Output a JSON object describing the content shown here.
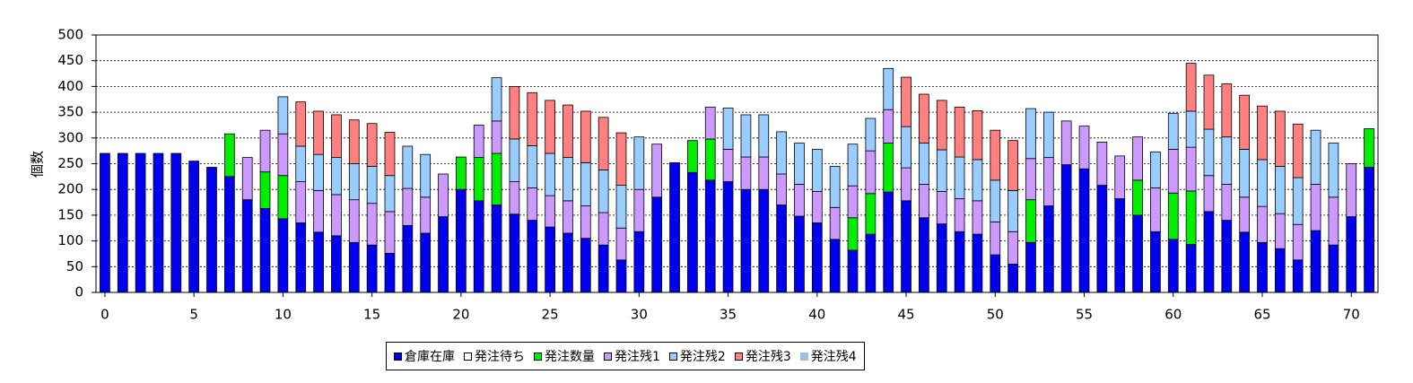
{
  "chart_data": {
    "type": "stacked_bar",
    "ylabel": "個数",
    "x": [
      0,
      1,
      2,
      3,
      4,
      5,
      6,
      7,
      8,
      9,
      10,
      11,
      12,
      13,
      14,
      15,
      16,
      17,
      18,
      19,
      20,
      21,
      22,
      23,
      24,
      25,
      26,
      27,
      28,
      29,
      30,
      31,
      32,
      33,
      34,
      35,
      36,
      37,
      38,
      39,
      40,
      41,
      42,
      43,
      44,
      45,
      46,
      47,
      48,
      49,
      50,
      51,
      52,
      53,
      54,
      55,
      56,
      57,
      58,
      59,
      60,
      61,
      62,
      63,
      64,
      65,
      66,
      67,
      68,
      69,
      70,
      71
    ],
    "xlim": [
      -0.5,
      71.5
    ],
    "xticks": [
      0,
      5,
      10,
      15,
      20,
      25,
      30,
      35,
      40,
      45,
      50,
      55,
      60,
      65,
      70
    ],
    "ylim": [
      0,
      500
    ],
    "yticks": [
      0,
      50,
      100,
      150,
      200,
      250,
      300,
      350,
      400,
      450,
      500
    ],
    "grid": true,
    "legend": "bottom",
    "series": [
      {
        "name": "倉庫在庫",
        "color": "#0000ee",
        "values": [
          270,
          270,
          270,
          270,
          270,
          255,
          243,
          225,
          180,
          163,
          143,
          135,
          117,
          110,
          97,
          92,
          76,
          130,
          115,
          147,
          200,
          178,
          170,
          152,
          140,
          127,
          115,
          105,
          92,
          63,
          118,
          185,
          252,
          233,
          218,
          215,
          200,
          200,
          170,
          148,
          135,
          103,
          82,
          113,
          195,
          178,
          145,
          133,
          118,
          113,
          73,
          55,
          97,
          168,
          248,
          240,
          208,
          182,
          150,
          118,
          103,
          93,
          157,
          140,
          117,
          97,
          85,
          63,
          120,
          92,
          147,
          243
        ]
      },
      {
        "name": "発注待ち",
        "color": "#ffffff",
        "values": [
          0,
          0,
          0,
          0,
          0,
          0,
          0,
          0,
          0,
          0,
          0,
          0,
          0,
          0,
          0,
          0,
          0,
          0,
          0,
          0,
          0,
          0,
          0,
          0,
          0,
          0,
          0,
          0,
          0,
          0,
          0,
          0,
          0,
          0,
          0,
          0,
          0,
          0,
          0,
          0,
          0,
          0,
          0,
          0,
          0,
          0,
          0,
          0,
          0,
          0,
          0,
          0,
          0,
          0,
          0,
          0,
          0,
          0,
          0,
          0,
          0,
          0,
          0,
          0,
          0,
          0,
          0,
          0,
          0,
          0,
          0,
          0
        ]
      },
      {
        "name": "発注数量",
        "color": "#00ee00",
        "values": [
          0,
          0,
          0,
          0,
          0,
          0,
          0,
          83,
          0,
          71,
          84,
          0,
          0,
          0,
          0,
          0,
          0,
          0,
          0,
          0,
          63,
          84,
          100,
          0,
          0,
          0,
          0,
          0,
          0,
          0,
          0,
          0,
          0,
          62,
          80,
          0,
          0,
          0,
          0,
          0,
          0,
          0,
          63,
          79,
          95,
          0,
          0,
          0,
          0,
          0,
          0,
          0,
          83,
          0,
          0,
          0,
          0,
          0,
          68,
          0,
          90,
          104,
          0,
          0,
          0,
          0,
          0,
          0,
          0,
          0,
          0,
          75
        ]
      },
      {
        "name": "発注残1",
        "color": "#cc99ff",
        "values": [
          0,
          0,
          0,
          0,
          0,
          0,
          0,
          0,
          82,
          81,
          81,
          80,
          81,
          80,
          83,
          81,
          81,
          72,
          70,
          83,
          0,
          63,
          63,
          63,
          63,
          61,
          63,
          63,
          63,
          62,
          82,
          103,
          0,
          0,
          62,
          63,
          63,
          63,
          60,
          62,
          61,
          62,
          62,
          83,
          65,
          64,
          65,
          63,
          64,
          65,
          64,
          63,
          80,
          94,
          85,
          83,
          84,
          83,
          84,
          85,
          85,
          85,
          70,
          70,
          68,
          70,
          68,
          69,
          90,
          93,
          103,
          0
        ]
      },
      {
        "name": "発注残2",
        "color": "#99ccff",
        "values": [
          0,
          0,
          0,
          0,
          0,
          0,
          0,
          0,
          0,
          0,
          72,
          69,
          70,
          72,
          70,
          72,
          70,
          82,
          83,
          0,
          0,
          0,
          84,
          83,
          82,
          82,
          84,
          84,
          83,
          83,
          102,
          0,
          0,
          0,
          0,
          80,
          82,
          82,
          82,
          80,
          82,
          80,
          81,
          63,
          80,
          80,
          80,
          81,
          81,
          80,
          81,
          80,
          97,
          88,
          0,
          0,
          0,
          0,
          0,
          70,
          70,
          70,
          90,
          92,
          93,
          91,
          92,
          91,
          105,
          105,
          0,
          0
        ]
      },
      {
        "name": "発注残3",
        "color": "#ff8080",
        "values": [
          0,
          0,
          0,
          0,
          0,
          0,
          0,
          0,
          0,
          0,
          0,
          86,
          84,
          83,
          85,
          83,
          84,
          0,
          0,
          0,
          0,
          0,
          0,
          102,
          103,
          103,
          102,
          100,
          102,
          102,
          0,
          0,
          0,
          0,
          0,
          0,
          0,
          0,
          0,
          0,
          0,
          0,
          0,
          0,
          0,
          96,
          95,
          96,
          97,
          95,
          97,
          97,
          0,
          0,
          0,
          0,
          0,
          0,
          0,
          0,
          0,
          93,
          105,
          103,
          105,
          104,
          107,
          104,
          0,
          0,
          0,
          0
        ]
      },
      {
        "name": "発注残4",
        "color": "#a0bfe0",
        "values": [
          0,
          0,
          0,
          0,
          0,
          0,
          0,
          0,
          0,
          0,
          0,
          0,
          0,
          0,
          0,
          0,
          0,
          0,
          0,
          0,
          0,
          0,
          0,
          0,
          0,
          0,
          0,
          0,
          0,
          0,
          0,
          0,
          0,
          0,
          0,
          0,
          0,
          0,
          0,
          0,
          0,
          0,
          0,
          0,
          0,
          0,
          0,
          0,
          0,
          0,
          0,
          0,
          0,
          0,
          0,
          0,
          0,
          0,
          0,
          0,
          0,
          0,
          0,
          0,
          0,
          0,
          0,
          0,
          0,
          0,
          0,
          0
        ]
      }
    ]
  }
}
